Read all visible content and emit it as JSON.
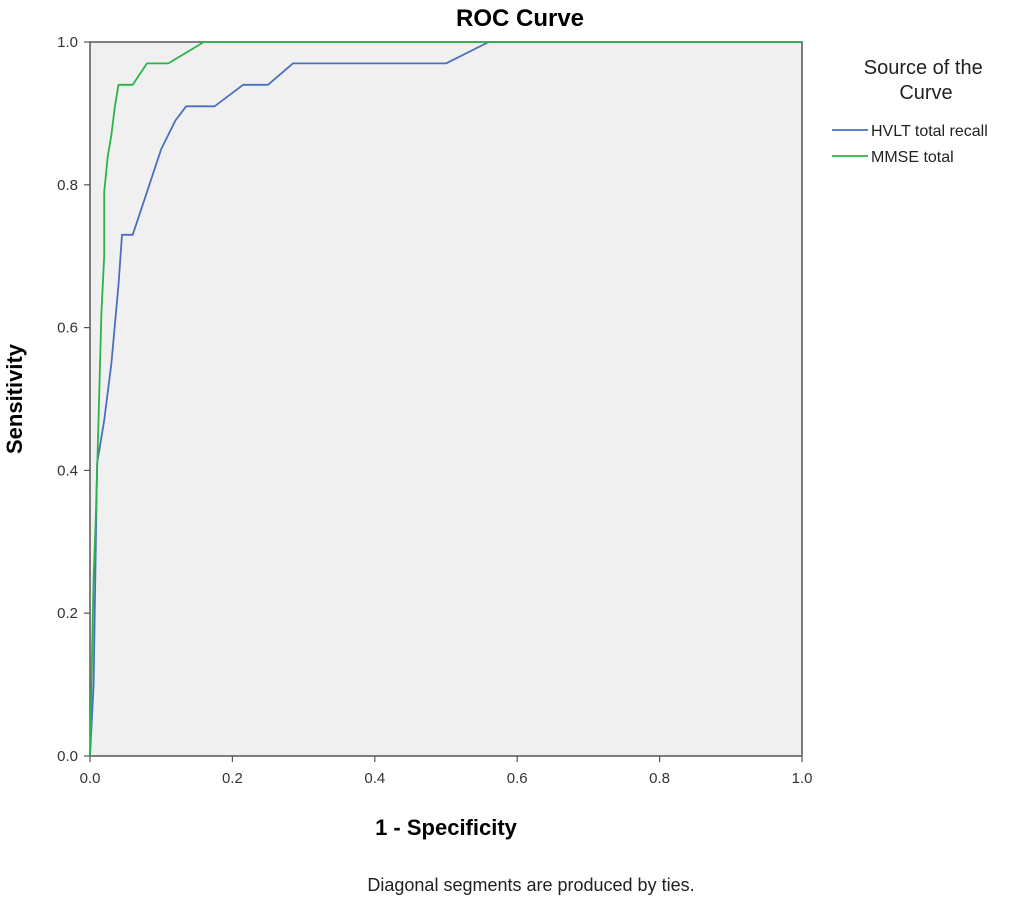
{
  "chart_data": {
    "type": "line",
    "title": "ROC Curve",
    "xlabel": "1 - Specificity",
    "ylabel": "Sensitivity",
    "xlim": [
      0,
      1
    ],
    "ylim": [
      0,
      1
    ],
    "x_ticks": [
      "0.0",
      "0.2",
      "0.4",
      "0.6",
      "0.8",
      "1.0"
    ],
    "y_ticks": [
      "0.0",
      "0.2",
      "0.4",
      "0.6",
      "0.8",
      "1.0"
    ],
    "legend_title": "Source of the Curve",
    "legend_position": "right",
    "footnote": "Diagonal segments are produced by ties.",
    "background_color": "#f0f0f0",
    "series": [
      {
        "name": "HVLT total recall",
        "color": "#4a6fbf",
        "points": [
          [
            0.0,
            0.0
          ],
          [
            0.005,
            0.1
          ],
          [
            0.01,
            0.41
          ],
          [
            0.02,
            0.47
          ],
          [
            0.03,
            0.55
          ],
          [
            0.04,
            0.66
          ],
          [
            0.045,
            0.73
          ],
          [
            0.06,
            0.73
          ],
          [
            0.08,
            0.79
          ],
          [
            0.1,
            0.85
          ],
          [
            0.12,
            0.89
          ],
          [
            0.135,
            0.91
          ],
          [
            0.175,
            0.91
          ],
          [
            0.215,
            0.94
          ],
          [
            0.25,
            0.94
          ],
          [
            0.285,
            0.97
          ],
          [
            0.5,
            0.97
          ],
          [
            0.56,
            1.0
          ],
          [
            1.0,
            1.0
          ]
        ]
      },
      {
        "name": "MMSE total",
        "color": "#2bb34a",
        "points": [
          [
            0.0,
            0.0
          ],
          [
            0.005,
            0.25
          ],
          [
            0.008,
            0.33
          ],
          [
            0.012,
            0.47
          ],
          [
            0.016,
            0.62
          ],
          [
            0.02,
            0.7
          ],
          [
            0.02,
            0.79
          ],
          [
            0.025,
            0.84
          ],
          [
            0.03,
            0.87
          ],
          [
            0.035,
            0.91
          ],
          [
            0.04,
            0.94
          ],
          [
            0.06,
            0.94
          ],
          [
            0.08,
            0.97
          ],
          [
            0.11,
            0.97
          ],
          [
            0.16,
            1.0
          ],
          [
            1.0,
            1.0
          ]
        ]
      }
    ]
  }
}
